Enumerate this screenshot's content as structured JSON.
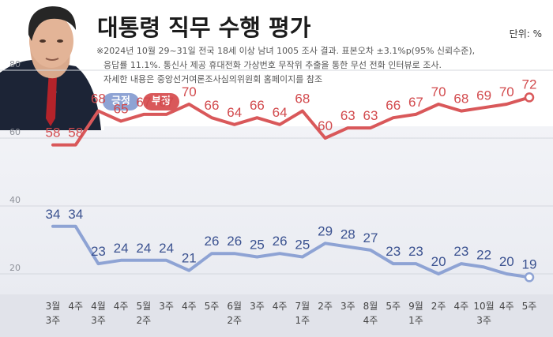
{
  "header": {
    "title": "대통령 직무 수행 평가",
    "unit": "단위: %",
    "note_lines": [
      "※2024년 10월 29~31일 전국 18세 이상 남녀 1005 조사 결과. 표본오차 ±3.1%p(95% 신뢰수준),",
      "응답률 11.1%. 통신사 제공 휴대전화 가상번호 무작위 추출을 통한 무선 전화 인터뷰로 조사.",
      "자세한 내용은 중앙선거여론조사심의위원회 홈페이지를 참조"
    ]
  },
  "legend": {
    "positive": "긍정",
    "negative": "부정"
  },
  "colors": {
    "positive": "#8ea3d4",
    "negative": "#d9585a",
    "positive_text": "#3b5290",
    "negative_text": "#d24a4d"
  },
  "chart_data": {
    "type": "line",
    "title": "대통령 직무 수행 평가",
    "ylabel": "단위: %",
    "ylim": [
      0,
      80
    ],
    "yticks": [
      20,
      40,
      60,
      80
    ],
    "categories": [
      "3월\n3주",
      "4주",
      "4월\n3주",
      "4주",
      "5월\n2주",
      "3주",
      "4주",
      "5주",
      "6월\n2주",
      "3주",
      "4주",
      "7월\n1주",
      "2주",
      "3주",
      "8월\n4주",
      "5주",
      "9월\n1주",
      "2주",
      "4주",
      "10월\n3주",
      "4주",
      "5주"
    ],
    "series": [
      {
        "name": "부정",
        "values": [
          58,
          58,
          68,
          65,
          67,
          67,
          70,
          66,
          64,
          66,
          64,
          68,
          60,
          63,
          63,
          66,
          67,
          70,
          68,
          69,
          70,
          72
        ]
      },
      {
        "name": "긍정",
        "values": [
          34,
          34,
          23,
          24,
          24,
          24,
          21,
          26,
          26,
          25,
          26,
          25,
          29,
          28,
          27,
          23,
          23,
          20,
          23,
          22,
          20,
          19
        ]
      }
    ],
    "x_label_rows": [
      [
        "3월",
        "4주",
        "4월",
        "4주",
        "5월",
        "3주",
        "4주",
        "5주",
        "6월",
        "3주",
        "4주",
        "7월",
        "2주",
        "3주",
        "8월",
        "5주",
        "9월",
        "2주",
        "4주",
        "10월",
        "4주",
        "5주"
      ],
      [
        "3주",
        "",
        "3주",
        "",
        "2주",
        "",
        "",
        "",
        "2주",
        "",
        "",
        "1주",
        "",
        "",
        "4주",
        "",
        "1주",
        "",
        "",
        "3주",
        "",
        ""
      ]
    ]
  }
}
